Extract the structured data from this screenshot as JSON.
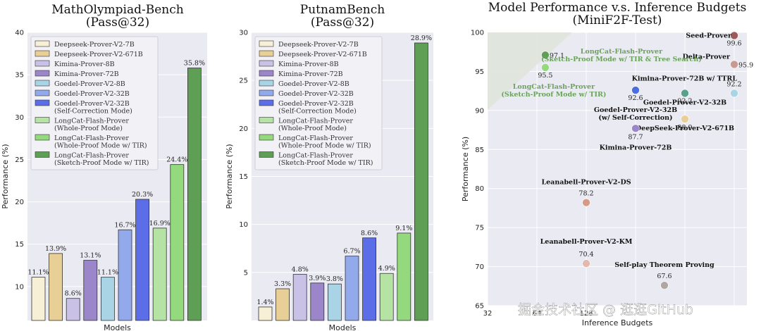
{
  "chart_data": [
    {
      "type": "bar",
      "title_line1": "MathOlympiad-Bench",
      "title_line2": "(Pass@32)",
      "xlabel": "Models",
      "ylabel": "Performance (%)",
      "ylim": [
        6,
        40
      ],
      "yticks": [
        10,
        15,
        20,
        25,
        30,
        35,
        40
      ],
      "legend": "top-left",
      "categories": [
        "Deepseek-Prover-V2-7B",
        "Deepseek-Prover-V2-671B",
        "Kimina-Prover-8B",
        "Kimina-Prover-72B",
        "Goedel-Prover-V2-8B",
        "Goedel-Prover-V2-32B",
        "Goedel-Prover-V2-32B (Self-Correction Mode)",
        "LongCat-Flash-Prover (Whole-Proof Mode)",
        "LongCat-Flash-Prover (Whole-Proof Mode w/ TIR)",
        "LongCat-Flash-Prover (Sketch-Proof Mode w/ TIR)"
      ],
      "legend_lines": [
        [
          "Deepseek-Prover-V2-7B"
        ],
        [
          "Deepseek-Prover-V2-671B"
        ],
        [
          "Kimina-Prover-8B"
        ],
        [
          "Kimina-Prover-72B"
        ],
        [
          "Goedel-Prover-V2-8B"
        ],
        [
          "Goedel-Prover-V2-32B"
        ],
        [
          "Goedel-Prover-V2-32B",
          "(Self-Correction Mode)"
        ],
        [
          "LongCat-Flash-Prover",
          "(Whole-Proof Mode)"
        ],
        [
          "LongCat-Flash-Prover",
          "(Whole-Proof Mode w/ TIR)"
        ],
        [
          "LongCat-Flash-Prover",
          "(Sketch-Proof Mode w/ TIR)"
        ]
      ],
      "values": [
        11.1,
        13.9,
        8.6,
        13.1,
        11.1,
        16.7,
        20.3,
        16.9,
        24.4,
        35.8
      ],
      "labels": [
        "11.1%",
        "13.9%",
        "8.6%",
        "13.1%",
        "11.1%",
        "16.7%",
        "20.3%",
        "16.9%",
        "24.4%",
        "35.8%"
      ],
      "colors": [
        "#f7efd6",
        "#e8cf96",
        "#c9c1e6",
        "#9b86c9",
        "#a9d4e6",
        "#92aaec",
        "#5b6ee8",
        "#b4e3a4",
        "#94d97d",
        "#5f9e55"
      ]
    },
    {
      "type": "bar",
      "title_line1": "PutnamBench",
      "title_line2": "(Pass@32)",
      "xlabel": "Models",
      "ylabel": "Performance (%)",
      "ylim": [
        0,
        30
      ],
      "yticks": [
        5,
        10,
        15,
        20,
        25,
        30
      ],
      "legend": "top-left",
      "categories": [
        "Deepseek-Prover-V2-7B",
        "Deepseek-Prover-V2-671B",
        "Kimina-Prover-8B",
        "Kimina-Prover-72B",
        "Goedel-Prover-V2-8B",
        "Goedel-Prover-V2-32B",
        "Goedel-Prover-V2-32B (Self-Correction Mode)",
        "LongCat-Flash-Prover (Whole-Proof Mode)",
        "LongCat-Flash-Prover (Whole-Proof Mode w/ TIR)",
        "LongCat-Flash-Prover (Sketch-Proof Mode w/ TIR)"
      ],
      "legend_lines": [
        [
          "Deepseek-Prover-V2-7B"
        ],
        [
          "Deepseek-Prover-V2-671B"
        ],
        [
          "Kimina-Prover-8B"
        ],
        [
          "Kimina-Prover-72B"
        ],
        [
          "Goedel-Prover-V2-8B"
        ],
        [
          "Goedel-Prover-V2-32B"
        ],
        [
          "Goedel-Prover-V2-32B",
          "(Self-Correction Mode)"
        ],
        [
          "LongCat-Flash-Prover",
          "(Whole-Proof Mode)"
        ],
        [
          "LongCat-Flash-Prover",
          "(Whole-Proof Mode w/ TIR)"
        ],
        [
          "LongCat-Flash-Prover",
          "(Sketch-Proof Mode w/ TIR)"
        ]
      ],
      "values": [
        1.4,
        3.3,
        4.8,
        3.9,
        3.8,
        6.7,
        8.6,
        4.9,
        9.1,
        28.9
      ],
      "labels": [
        "1.4%",
        "3.3%",
        "4.8%",
        "3.9%",
        "3.8%",
        "6.7%",
        "8.6%",
        "4.9%",
        "9.1%",
        "28.9%"
      ],
      "colors": [
        "#f7efd6",
        "#e8cf96",
        "#c9c1e6",
        "#9b86c9",
        "#a9d4e6",
        "#92aaec",
        "#5b6ee8",
        "#b4e3a4",
        "#94d97d",
        "#5f9e55"
      ]
    },
    {
      "type": "scatter",
      "title_line1": "Model Performance v.s. Inference Budgets",
      "title_line2": "(MiniF2F-Test)",
      "xlabel": "Inference Budgets",
      "ylabel": "Performance (%)",
      "ylim": [
        65,
        100
      ],
      "yticks": [
        65,
        70,
        75,
        80,
        85,
        90,
        95,
        100
      ],
      "xscale": "log2",
      "xlim": [
        32,
        1024
      ],
      "xticks_visible": [
        "32",
        "64",
        "128"
      ],
      "points": [
        {
          "name": "Seed-Prover",
          "x": 1024,
          "y": 99.6,
          "label": "99.6",
          "color": "#9c5a5a"
        },
        {
          "name": "Delta-Prover",
          "x": 1024,
          "y": 95.9,
          "label": "95.9",
          "color": "#c89a92"
        },
        {
          "name": "Kimina-Prover-72B w/ TTRL",
          "x": 1024,
          "y": 92.2,
          "label": "92.2",
          "color": "#a9d4e6"
        },
        {
          "name": "Goedel-Prover-V2-32B",
          "x": 512,
          "y": 92.2,
          "label": "92.2",
          "color": "#5aa08a"
        },
        {
          "name": "DeepSeek-Prover-V2-671B",
          "x": 512,
          "y": 88.9,
          "label": "88.9",
          "color": "#e8cf96"
        },
        {
          "name": "Goedel-Prover-V2-32B (w/ Self-Correction)",
          "x": 256,
          "y": 92.6,
          "label": "92.6",
          "color": "#4a6ee0"
        },
        {
          "name": "Kimina-Prover-72B",
          "x": 256,
          "y": 87.7,
          "label": "87.7",
          "color": "#9b86c9"
        },
        {
          "name": "Leanabell-Prover-V2-DS",
          "x": 128,
          "y": 78.2,
          "label": "78.2",
          "color": "#d79a86"
        },
        {
          "name": "Leanabell-Prover-V2-KM",
          "x": 128,
          "y": 70.4,
          "label": "70.4",
          "color": "#e3b9ad"
        },
        {
          "name": "Self-play Theorem Proving",
          "x": 384,
          "y": 67.6,
          "label": "67.6",
          "color": "#b0a7a4"
        },
        {
          "name": "LongCat-Flash-Prover (Sketch-Proof Mode w/ TIR & Tree Search)",
          "x": 72,
          "y": 97.1,
          "label": "97.1",
          "color": "#5f9e55"
        },
        {
          "name": "LongCat-Flash-Prover (Sketch-Proof Mode w/ TIR)",
          "x": 72,
          "y": 95.5,
          "label": "95.5",
          "color": "#94d97d"
        }
      ],
      "lc_text_1": [
        "LongCat-Flash-Prover",
        "(Sketch-Proof Mode w/ TIR & Tree Search)"
      ],
      "lc_text_2": [
        "LongCat-Flash-Prover",
        "(Sketch-Proof Mode w/ TIR)"
      ],
      "sc_name": [
        "Goedel-Prover-V2-32B",
        "(w/ Self-Correction)"
      ]
    }
  ],
  "watermark": "掘金技术社区 @ 逛逛GitHub"
}
